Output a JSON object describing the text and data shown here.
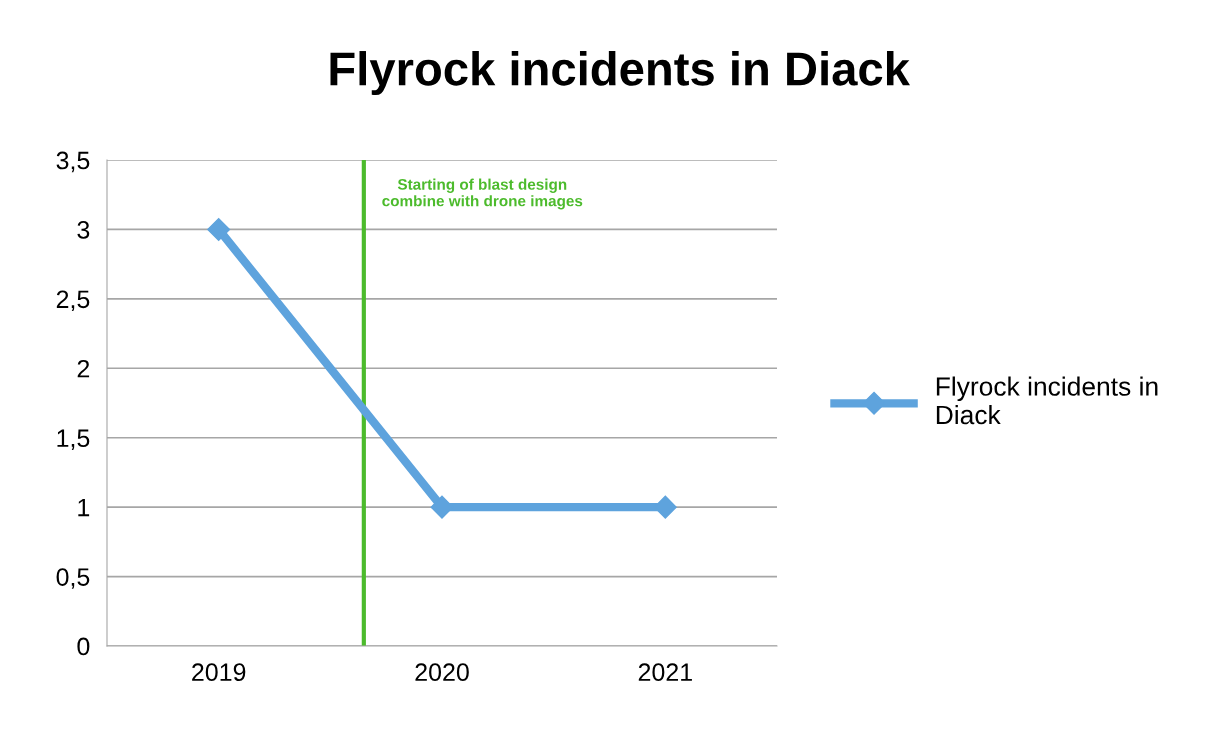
{
  "chart_data": {
    "type": "line",
    "title": "Flyrock incidents in Diack",
    "x": [
      2019,
      2020,
      2021
    ],
    "series": [
      {
        "name": "Flyrock incidents in Diack",
        "color": "#5ea3dd",
        "values": [
          3,
          1,
          1
        ]
      }
    ],
    "xlim": [
      2018.5,
      2021.5
    ],
    "xticks": [
      2019,
      2020,
      2021
    ],
    "ylim": [
      0,
      3.5
    ],
    "yticks": [
      0,
      {
        "value": 0.5,
        "label": "0,5"
      },
      1,
      {
        "value": 1.5,
        "label": "1,5"
      },
      2,
      {
        "value": 2.5,
        "label": "2,5"
      },
      3,
      {
        "value": 3.5,
        "label": "3,5"
      }
    ],
    "grid": "y",
    "legend": "right",
    "marker": "diamond",
    "line_style": "solid",
    "ref_lines": [
      {
        "axis": "x",
        "value": 2019.65,
        "label": "Starting of blast design combine with drone images",
        "color": "#4cbb2c",
        "line_style": "solid"
      }
    ]
  }
}
